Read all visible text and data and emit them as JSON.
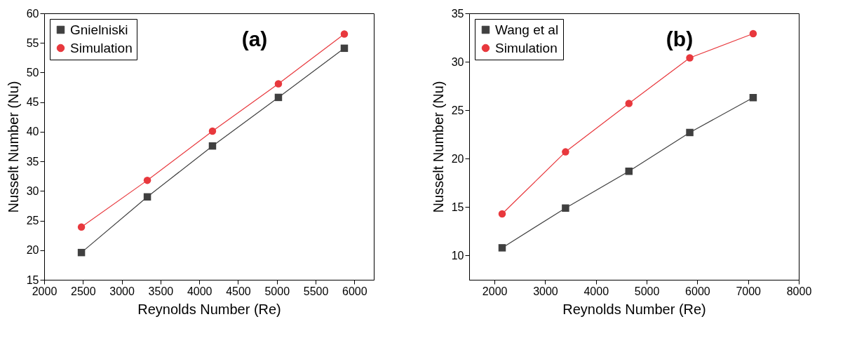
{
  "chart_data": [
    {
      "type": "line",
      "xlabel": "Reynolds Number (Re)",
      "ylabel": "Nusselt Number (Nu)",
      "annotations": [
        "(a)"
      ],
      "x": [
        2480,
        3330,
        4170,
        5020,
        5870
      ],
      "series": [
        {
          "name": "Gnielniski",
          "color": "#404040",
          "marker": "square",
          "values": [
            19.6,
            29.0,
            37.6,
            45.8,
            54.1
          ]
        },
        {
          "name": "Simulation",
          "color": "#e8383d",
          "marker": "circle",
          "values": [
            23.9,
            31.8,
            40.1,
            48.1,
            56.5
          ]
        }
      ],
      "xlim": [
        2000,
        6250
      ],
      "xticks": [
        2000,
        2500,
        3000,
        3500,
        4000,
        4500,
        5000,
        5500,
        6000
      ],
      "ylim": [
        15,
        60
      ],
      "yticks": [
        15,
        20,
        25,
        30,
        35,
        40,
        45,
        50,
        55,
        60
      ],
      "legend": "top left",
      "line_style": "solid"
    },
    {
      "type": "line",
      "xlabel": "Reynolds Number (Re)",
      "ylabel": "Nusselt Number (Nu)",
      "annotations": [
        "(b)"
      ],
      "x": [
        2150,
        3400,
        4650,
        5850,
        7100
      ],
      "series": [
        {
          "name": "Wang et al",
          "color": "#404040",
          "marker": "square",
          "values": [
            10.8,
            14.9,
            18.7,
            22.7,
            26.3
          ]
        },
        {
          "name": "Simulation",
          "color": "#e8383d",
          "marker": "circle",
          "values": [
            14.3,
            20.7,
            25.7,
            30.4,
            32.9
          ]
        }
      ],
      "xlim": [
        1500,
        8000
      ],
      "xticks": [
        2000,
        3000,
        4000,
        5000,
        6000,
        7000,
        8000
      ],
      "ylim": [
        7.5,
        35
      ],
      "yticks": [
        10,
        15,
        20,
        25,
        30,
        35
      ],
      "legend": "top left",
      "line_style": "solid"
    }
  ]
}
